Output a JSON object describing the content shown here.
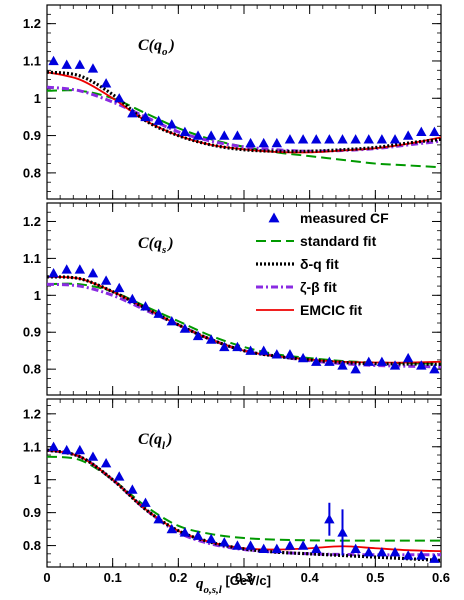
{
  "chart_data": {
    "type": "line",
    "x_tick_labels": [
      "0",
      "0.1",
      "0.2",
      "0.3",
      "0.4",
      "0.5",
      "0.6"
    ],
    "y_tick_labels": [
      "0.8",
      "0.9",
      "1",
      "1.1",
      "1.2"
    ],
    "xlim": [
      0,
      0.6
    ],
    "x_axis_label": {
      "main": "q",
      "sub": "o,s,l",
      "unit": " [GeV/c]"
    },
    "legend": {
      "placement": "panel-2 top-right",
      "entries": [
        {
          "label": "measured CF",
          "style": "triangle",
          "color": "#0000dd"
        },
        {
          "label": "standard fit",
          "style": "dashed",
          "color": "#009900"
        },
        {
          "label": "δ-q fit",
          "style": "dotted",
          "color": "#000000"
        },
        {
          "label": "ζ-β fit",
          "style": "dashdot",
          "color": "#8a2be2"
        },
        {
          "label": "EMCIC fit",
          "style": "solid",
          "color": "#ee0000"
        }
      ]
    },
    "panels": [
      {
        "label_main": "C(q",
        "label_sub": "o",
        "label_end": ")",
        "ylim": [
          0.72,
          1.25
        ],
        "measured": {
          "x": [
            0.01,
            0.03,
            0.05,
            0.07,
            0.09,
            0.11,
            0.13,
            0.15,
            0.17,
            0.19,
            0.21,
            0.23,
            0.25,
            0.27,
            0.29,
            0.31,
            0.33,
            0.35,
            0.37,
            0.39,
            0.41,
            0.43,
            0.45,
            0.47,
            0.49,
            0.51,
            0.53,
            0.55,
            0.57,
            0.59
          ],
          "y": [
            1.1,
            1.09,
            1.09,
            1.08,
            1.04,
            1.0,
            0.96,
            0.95,
            0.94,
            0.93,
            0.91,
            0.9,
            0.9,
            0.9,
            0.9,
            0.88,
            0.88,
            0.88,
            0.89,
            0.89,
            0.89,
            0.89,
            0.89,
            0.89,
            0.89,
            0.89,
            0.89,
            0.9,
            0.91,
            0.91
          ]
        },
        "fits": {
          "x": [
            0.0,
            0.05,
            0.1,
            0.15,
            0.2,
            0.25,
            0.3,
            0.35,
            0.4,
            0.45,
            0.5,
            0.55,
            0.6
          ],
          "standard": [
            1.02,
            1.02,
            1.0,
            0.96,
            0.92,
            0.89,
            0.87,
            0.855,
            0.845,
            0.835,
            0.825,
            0.82,
            0.815
          ],
          "delta_q": [
            1.07,
            1.06,
            1.01,
            0.94,
            0.9,
            0.875,
            0.862,
            0.858,
            0.858,
            0.862,
            0.868,
            0.88,
            0.89
          ],
          "zeta_beta": [
            1.03,
            1.02,
            0.99,
            0.95,
            0.91,
            0.885,
            0.87,
            0.862,
            0.858,
            0.86,
            0.865,
            0.875,
            0.885
          ],
          "emcic": [
            1.07,
            1.05,
            1.0,
            0.94,
            0.9,
            0.875,
            0.863,
            0.856,
            0.855,
            0.86,
            0.866,
            0.878,
            0.895
          ]
        }
      },
      {
        "label_main": "C(q",
        "label_sub": "s",
        "label_end": ")",
        "ylim": [
          0.72,
          1.25
        ],
        "measured": {
          "x": [
            0.01,
            0.03,
            0.05,
            0.07,
            0.09,
            0.11,
            0.13,
            0.15,
            0.17,
            0.19,
            0.21,
            0.23,
            0.25,
            0.27,
            0.29,
            0.31,
            0.33,
            0.35,
            0.37,
            0.39,
            0.41,
            0.43,
            0.45,
            0.47,
            0.49,
            0.51,
            0.53,
            0.55,
            0.57,
            0.59
          ],
          "y": [
            1.06,
            1.07,
            1.07,
            1.06,
            1.04,
            1.02,
            0.99,
            0.97,
            0.95,
            0.93,
            0.91,
            0.89,
            0.88,
            0.86,
            0.86,
            0.85,
            0.85,
            0.84,
            0.84,
            0.83,
            0.82,
            0.82,
            0.81,
            0.8,
            0.82,
            0.82,
            0.81,
            0.83,
            0.81,
            0.8
          ]
        },
        "fits": {
          "x": [
            0.0,
            0.05,
            0.1,
            0.15,
            0.2,
            0.25,
            0.3,
            0.35,
            0.4,
            0.45,
            0.5,
            0.55,
            0.6
          ],
          "standard": [
            1.03,
            1.03,
            1.01,
            0.97,
            0.93,
            0.89,
            0.86,
            0.84,
            0.83,
            0.822,
            0.818,
            0.816,
            0.815
          ],
          "delta_q": [
            1.05,
            1.045,
            1.01,
            0.965,
            0.92,
            0.88,
            0.85,
            0.835,
            0.825,
            0.818,
            0.815,
            0.814,
            0.813
          ],
          "zeta_beta": [
            1.03,
            1.025,
            1.0,
            0.96,
            0.92,
            0.88,
            0.85,
            0.835,
            0.823,
            0.815,
            0.81,
            0.808,
            0.806
          ],
          "emcic": [
            1.05,
            1.045,
            1.01,
            0.965,
            0.92,
            0.88,
            0.85,
            0.835,
            0.826,
            0.82,
            0.818,
            0.818,
            0.82
          ]
        }
      },
      {
        "label_main": "C(q",
        "label_sub": "l",
        "label_end": ")",
        "ylim": [
          0.72,
          1.25
        ],
        "measured": {
          "x": [
            0.01,
            0.03,
            0.05,
            0.07,
            0.09,
            0.11,
            0.13,
            0.15,
            0.17,
            0.19,
            0.21,
            0.23,
            0.25,
            0.27,
            0.29,
            0.31,
            0.33,
            0.35,
            0.37,
            0.39,
            0.41,
            0.43,
            0.45,
            0.47,
            0.49,
            0.51,
            0.53,
            0.55,
            0.57,
            0.59
          ],
          "y": [
            1.1,
            1.09,
            1.09,
            1.07,
            1.05,
            1.01,
            0.97,
            0.93,
            0.88,
            0.85,
            0.84,
            0.83,
            0.82,
            0.81,
            0.8,
            0.8,
            0.79,
            0.79,
            0.8,
            0.8,
            0.79,
            0.88,
            0.84,
            0.79,
            0.78,
            0.78,
            0.78,
            0.77,
            0.77,
            0.76
          ],
          "err": [
            0,
            0,
            0,
            0,
            0,
            0,
            0,
            0,
            0,
            0,
            0,
            0,
            0,
            0,
            0,
            0,
            0,
            0,
            0,
            0,
            0,
            0.05,
            0.07,
            0,
            0,
            0,
            0,
            0,
            0,
            0
          ]
        },
        "fits": {
          "x": [
            0.0,
            0.05,
            0.1,
            0.15,
            0.2,
            0.25,
            0.3,
            0.35,
            0.4,
            0.45,
            0.5,
            0.55,
            0.6
          ],
          "standard": [
            1.07,
            1.06,
            1.0,
            0.92,
            0.86,
            0.835,
            0.823,
            0.818,
            0.816,
            0.815,
            0.815,
            0.815,
            0.815
          ],
          "delta_q": [
            1.09,
            1.07,
            1.0,
            0.91,
            0.845,
            0.81,
            0.79,
            0.78,
            0.775,
            0.77,
            0.765,
            0.76,
            0.755
          ],
          "zeta_beta": [
            1.09,
            1.07,
            1.0,
            0.91,
            0.84,
            0.805,
            0.788,
            0.78,
            0.775,
            0.773,
            0.772,
            0.772,
            0.772
          ],
          "emcic": [
            1.09,
            1.07,
            1.0,
            0.91,
            0.845,
            0.81,
            0.792,
            0.788,
            0.792,
            0.798,
            0.792,
            0.786,
            0.783
          ]
        }
      }
    ]
  }
}
